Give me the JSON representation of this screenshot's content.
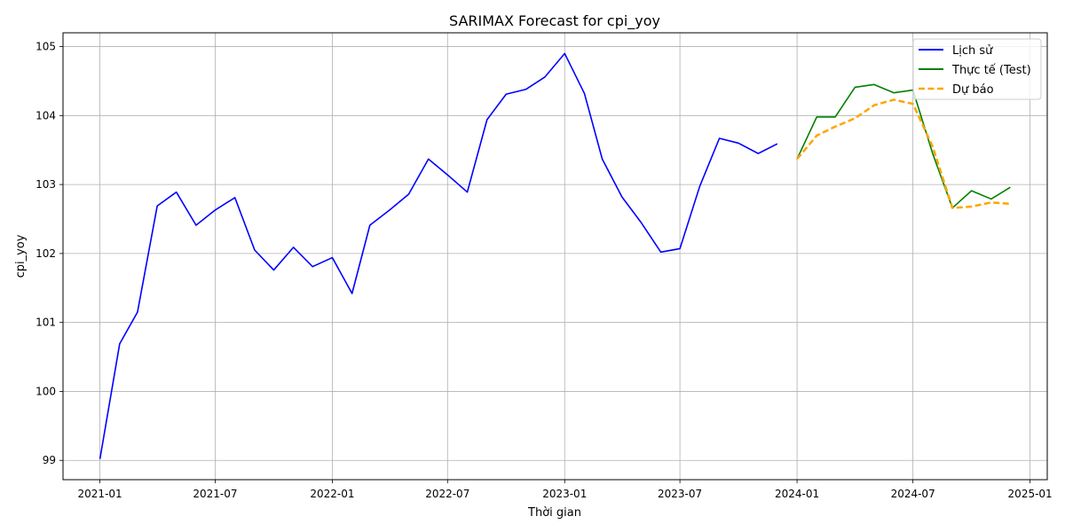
{
  "chart_data": {
    "type": "line",
    "title": "SARIMAX Forecast for cpi_yoy",
    "xlabel": "Thời gian",
    "ylabel": "cpi_yoy",
    "ylim": [
      98.72,
      105.2
    ],
    "xlim": [
      "2020-11-04",
      "2025-01-28"
    ],
    "grid": true,
    "legend_position": "top-right",
    "x_ticks": [
      "2021-01",
      "2021-07",
      "2022-01",
      "2022-07",
      "2023-01",
      "2023-07",
      "2024-01",
      "2024-07",
      "2025-01"
    ],
    "y_ticks": [
      99,
      100,
      101,
      102,
      103,
      104,
      105
    ],
    "series": [
      {
        "name": "Lịch sử",
        "color": "#0000ff",
        "style": "solid",
        "x": [
          "2021-01",
          "2021-02",
          "2021-03",
          "2021-04",
          "2021-05",
          "2021-06",
          "2021-07",
          "2021-08",
          "2021-09",
          "2021-10",
          "2021-11",
          "2021-12",
          "2022-01",
          "2022-02",
          "2022-03",
          "2022-04",
          "2022-05",
          "2022-06",
          "2022-07",
          "2022-08",
          "2022-09",
          "2022-10",
          "2022-11",
          "2022-12",
          "2023-01",
          "2023-02",
          "2023-03",
          "2023-04",
          "2023-05",
          "2023-06",
          "2023-07",
          "2023-08",
          "2023-09",
          "2023-10",
          "2023-11",
          "2023-12"
        ],
        "values": [
          99.02,
          100.69,
          101.15,
          102.69,
          102.89,
          102.41,
          102.63,
          102.81,
          102.05,
          101.76,
          102.09,
          101.81,
          101.94,
          101.42,
          102.41,
          102.63,
          102.86,
          103.37,
          103.14,
          102.89,
          103.94,
          104.31,
          104.38,
          104.56,
          104.9,
          104.32,
          103.37,
          102.82,
          102.45,
          102.02,
          102.07,
          102.97,
          103.67,
          103.6,
          103.45,
          103.59
        ]
      },
      {
        "name": "Thực tế (Test)",
        "color": "#008000",
        "style": "solid",
        "x": [
          "2024-01",
          "2024-02",
          "2024-03",
          "2024-04",
          "2024-05",
          "2024-06",
          "2024-07",
          "2024-08",
          "2024-09",
          "2024-10",
          "2024-11",
          "2024-12"
        ],
        "values": [
          103.37,
          103.98,
          103.98,
          104.41,
          104.45,
          104.33,
          104.37,
          103.45,
          102.66,
          102.91,
          102.79,
          102.96
        ]
      },
      {
        "name": "Dự báo",
        "color": "#ffa500",
        "style": "dashed",
        "x": [
          "2024-01",
          "2024-02",
          "2024-03",
          "2024-04",
          "2024-05",
          "2024-06",
          "2024-07",
          "2024-08",
          "2024-09",
          "2024-10",
          "2024-11",
          "2024-12"
        ],
        "values": [
          103.37,
          103.71,
          103.84,
          103.96,
          104.15,
          104.23,
          104.17,
          103.55,
          102.66,
          102.68,
          102.74,
          102.72
        ]
      }
    ]
  }
}
